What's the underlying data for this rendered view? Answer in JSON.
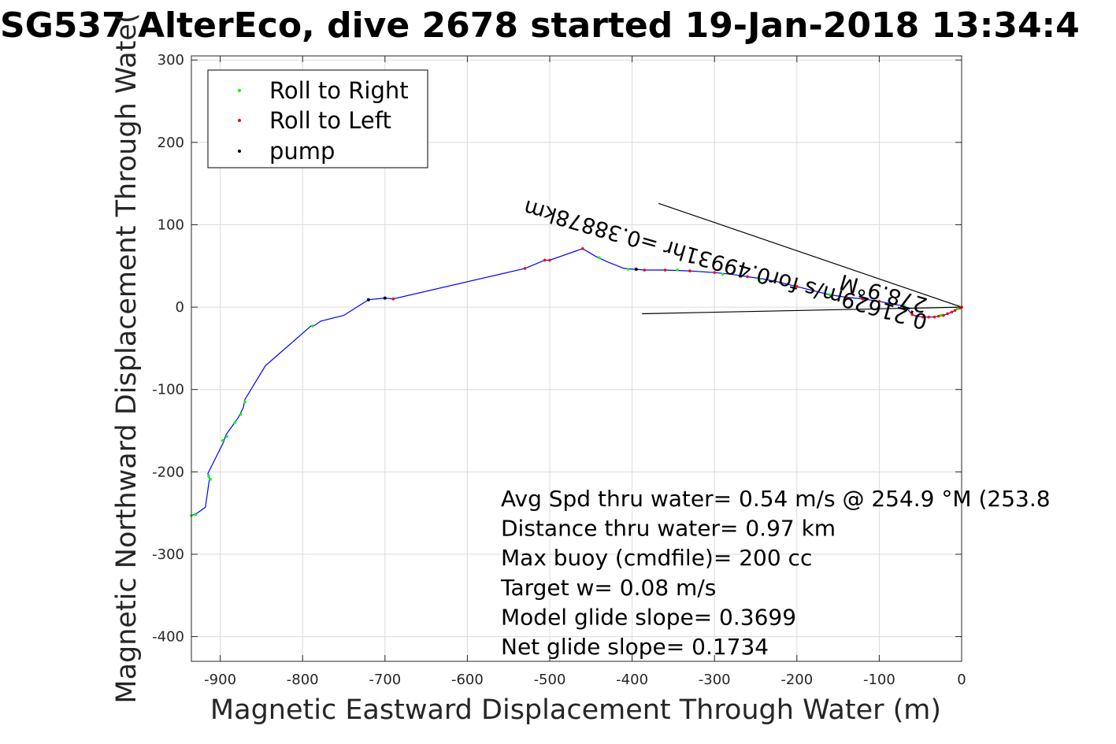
{
  "chart_data": {
    "type": "scatter",
    "title": "SG537 AlterEco, dive 2678 started 19-Jan-2018 13:34:4",
    "xlabel": "Magnetic Eastward Displacement Through Water (m)",
    "ylabel": "Magnetic Northward Displacement Through Wate(",
    "xlim": [
      -935,
      0
    ],
    "ylim": [
      -430,
      305
    ],
    "xticks": [
      -900,
      -800,
      -700,
      -600,
      -500,
      -400,
      -300,
      -200,
      -100,
      0
    ],
    "yticks": [
      300,
      200,
      100,
      0,
      -100,
      -200,
      -300,
      -400
    ],
    "grid": true,
    "legend": {
      "position": "top-left",
      "entries": [
        {
          "label": "Roll to Right",
          "color": "#00ff00"
        },
        {
          "label": "Roll to Left",
          "color": "#ff0000"
        },
        {
          "label": "pump",
          "color": "#000000"
        }
      ]
    },
    "track_color": "#0000ff",
    "track": [
      [
        0,
        0
      ],
      [
        -2,
        -1
      ],
      [
        -5,
        -2
      ],
      [
        -8,
        -4
      ],
      [
        -12,
        -6
      ],
      [
        -17,
        -8
      ],
      [
        -22,
        -10
      ],
      [
        -28,
        -11
      ],
      [
        -33,
        -12
      ],
      [
        -40,
        -12
      ],
      [
        -47,
        -12
      ],
      [
        -55,
        -11
      ],
      [
        -60,
        -9
      ],
      [
        -68,
        0
      ],
      [
        -72,
        2
      ],
      [
        -80,
        3
      ],
      [
        -100,
        7
      ],
      [
        -120,
        10
      ],
      [
        -140,
        12
      ],
      [
        -160,
        15
      ],
      [
        -180,
        20
      ],
      [
        -200,
        25
      ],
      [
        -220,
        30
      ],
      [
        -240,
        34
      ],
      [
        -260,
        37
      ],
      [
        -280,
        40
      ],
      [
        -300,
        42
      ],
      [
        -330,
        44
      ],
      [
        -360,
        45
      ],
      [
        -385,
        45
      ],
      [
        -410,
        47
      ],
      [
        -430,
        55
      ],
      [
        -445,
        62
      ],
      [
        -460,
        71
      ],
      [
        -500,
        57
      ],
      [
        -506,
        57
      ],
      [
        -530,
        47
      ],
      [
        -690,
        10
      ],
      [
        -700,
        11
      ],
      [
        -720,
        9
      ],
      [
        -750,
        -10
      ],
      [
        -778,
        -17
      ],
      [
        -785,
        -22
      ],
      [
        -790,
        -23
      ],
      [
        -845,
        -71
      ],
      [
        -870,
        -112
      ],
      [
        -872,
        -122
      ],
      [
        -878,
        -134
      ],
      [
        -883,
        -141
      ],
      [
        -893,
        -155
      ],
      [
        -896,
        -164
      ],
      [
        -915,
        -202
      ],
      [
        -913,
        -208
      ],
      [
        -918,
        -243
      ],
      [
        -928,
        -250
      ],
      [
        -935,
        -253
      ]
    ],
    "roll_right": [
      [
        -5,
        -2
      ],
      [
        -25,
        -10
      ],
      [
        -45,
        -12
      ],
      [
        -70,
        2
      ],
      [
        -160,
        15
      ],
      [
        -245,
        34
      ],
      [
        -290,
        40
      ],
      [
        -345,
        45
      ],
      [
        -405,
        46
      ],
      [
        -440,
        60
      ],
      [
        -788,
        -23
      ],
      [
        -870,
        -115
      ],
      [
        -875,
        -130
      ],
      [
        -882,
        -140
      ],
      [
        -892,
        -157
      ],
      [
        -897,
        -162
      ],
      [
        -914,
        -205
      ],
      [
        -912,
        -209
      ],
      [
        -930,
        -252
      ],
      [
        -935,
        -253
      ]
    ],
    "roll_left": [
      [
        0,
        0
      ],
      [
        -2,
        -1
      ],
      [
        -8,
        -4
      ],
      [
        -12,
        -6
      ],
      [
        -17,
        -8
      ],
      [
        -22,
        -10
      ],
      [
        -28,
        -11
      ],
      [
        -33,
        -12
      ],
      [
        -40,
        -12
      ],
      [
        -47,
        -12
      ],
      [
        -55,
        -11
      ],
      [
        -60,
        -9
      ],
      [
        -100,
        7
      ],
      [
        -120,
        10
      ],
      [
        -140,
        12
      ],
      [
        -180,
        20
      ],
      [
        -200,
        25
      ],
      [
        -220,
        30
      ],
      [
        -260,
        37
      ],
      [
        -300,
        42
      ],
      [
        -330,
        44
      ],
      [
        -360,
        45
      ],
      [
        -385,
        45
      ],
      [
        -460,
        71
      ],
      [
        -500,
        57
      ],
      [
        -506,
        57
      ],
      [
        -530,
        47
      ],
      [
        -690,
        10
      ]
    ],
    "pump": [
      [
        -395,
        46
      ],
      [
        -700,
        11
      ],
      [
        -720,
        9
      ]
    ],
    "current_lines": [
      {
        "from": [
          0,
          0
        ],
        "to": [
          -368,
          126
        ]
      },
      {
        "from": [
          0,
          0
        ],
        "to": [
          -388,
          -8
        ]
      }
    ],
    "rotated_annotations": [
      {
        "text": "0.21629m/s for0.49931hr =0.38878km",
        "anchor": [
          -40,
          -10
        ],
        "angle_deg": 196
      },
      {
        "text": "278.9°M",
        "anchor": [
          -40,
          10
        ],
        "angle_deg": 196
      }
    ],
    "annotations": [
      "Avg Spd thru water=  0.54 m/s @ 254.9 °M (253.8",
      "Distance thru water=  0.97 km",
      "Max buoy (cmdfile)= 200 cc",
      "Target w= 0.08 m/s",
      "Model glide slope= 0.3699",
      "Net glide slope= 0.1734"
    ]
  }
}
